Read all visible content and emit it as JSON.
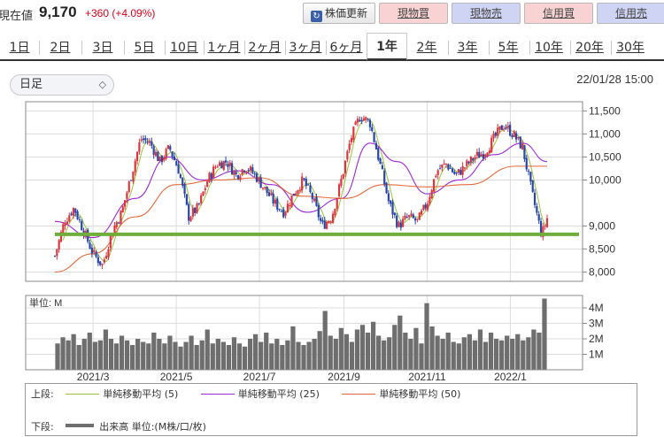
{
  "quote": {
    "label": "現在値",
    "price": "9,170",
    "change": "+360 (+4.09%)"
  },
  "buttons": {
    "refresh": "株価更新",
    "spot_buy": "現物買",
    "spot_sell": "現物売",
    "margin_buy": "信用買",
    "margin_sell": "信用売"
  },
  "tabs": [
    {
      "label": "1日"
    },
    {
      "label": "2日"
    },
    {
      "label": "3日"
    },
    {
      "label": "5日"
    },
    {
      "label": "10日"
    },
    {
      "label": "1ヶ月"
    },
    {
      "label": "2ヶ月"
    },
    {
      "label": "3ヶ月"
    },
    {
      "label": "6ヶ月"
    },
    {
      "label": "1年"
    },
    {
      "label": "2年"
    },
    {
      "label": "3年"
    },
    {
      "label": "5年"
    },
    {
      "label": "10年"
    },
    {
      "label": "20年"
    },
    {
      "label": "30年"
    }
  ],
  "active_tab": "1年",
  "period_select": {
    "value": "日足"
  },
  "timestamp": "22/01/28 15:00",
  "colors": {
    "up": "#d9363e",
    "down": "#2846a8",
    "ma5": "#9ac23c",
    "ma25": "#9c2ad0",
    "ma50": "#e06a3c",
    "support": "#6fae3a",
    "volume": "#6e6e6e"
  },
  "legend": {
    "upper_label": "上段:",
    "ma5": "単純移動平均 (5)",
    "ma25": "単純移動平均 (25)",
    "ma50": "単純移動平均 (50)",
    "lower_label": "下段:",
    "volume": "出来高 単位:(M株/口/枚)"
  },
  "chart_data": [
    {
      "type": "candlestick",
      "title": "",
      "x_tick_labels": [
        "2021/3",
        "2021/5",
        "2021/7",
        "2021/9",
        "2021/11",
        "2022/1"
      ],
      "y_tick_labels": [
        "11,500",
        "11,000",
        "10,500",
        "10,000",
        "9,000",
        "8,500",
        "8,000"
      ],
      "ylim": [
        7800,
        11700
      ],
      "grid": true,
      "support_line": 8820,
      "close_path": [
        [
          "2021-02-01",
          8350
        ],
        [
          "2021-02-08",
          9100
        ],
        [
          "2021-02-15",
          9400
        ],
        [
          "2021-02-22",
          8900
        ],
        [
          "2021-03-01",
          8400
        ],
        [
          "2021-03-08",
          8150
        ],
        [
          "2021-03-15",
          8900
        ],
        [
          "2021-03-22",
          9300
        ],
        [
          "2021-03-29",
          10100
        ],
        [
          "2021-04-05",
          10900
        ],
        [
          "2021-04-12",
          10800
        ],
        [
          "2021-04-19",
          10400
        ],
        [
          "2021-04-26",
          10700
        ],
        [
          "2021-05-03",
          10200
        ],
        [
          "2021-05-10",
          9200
        ],
        [
          "2021-05-17",
          9400
        ],
        [
          "2021-05-24",
          10000
        ],
        [
          "2021-05-31",
          10350
        ],
        [
          "2021-06-07",
          10400
        ],
        [
          "2021-06-14",
          10100
        ],
        [
          "2021-06-21",
          10300
        ],
        [
          "2021-06-28",
          10100
        ],
        [
          "2021-07-05",
          9800
        ],
        [
          "2021-07-12",
          9500
        ],
        [
          "2021-07-19",
          9300
        ],
        [
          "2021-07-26",
          9700
        ],
        [
          "2021-08-02",
          10000
        ],
        [
          "2021-08-09",
          9600
        ],
        [
          "2021-08-16",
          9000
        ],
        [
          "2021-08-23",
          9200
        ],
        [
          "2021-08-30",
          10000
        ],
        [
          "2021-09-06",
          10900
        ],
        [
          "2021-09-13",
          11400
        ],
        [
          "2021-09-20",
          11250
        ],
        [
          "2021-09-27",
          10400
        ],
        [
          "2021-10-04",
          9500
        ],
        [
          "2021-10-11",
          9000
        ],
        [
          "2021-10-18",
          9200
        ],
        [
          "2021-10-25",
          9100
        ],
        [
          "2021-11-01",
          9500
        ],
        [
          "2021-11-08",
          10200
        ],
        [
          "2021-11-15",
          10350
        ],
        [
          "2021-11-22",
          10100
        ],
        [
          "2021-11-29",
          10300
        ],
        [
          "2021-12-06",
          10500
        ],
        [
          "2021-12-13",
          10600
        ],
        [
          "2021-12-20",
          10900
        ],
        [
          "2021-12-27",
          11200
        ],
        [
          "2022-01-03",
          11000
        ],
        [
          "2022-01-10",
          10700
        ],
        [
          "2022-01-17",
          9700
        ],
        [
          "2022-01-24",
          8800
        ],
        [
          "2022-01-28",
          9170
        ]
      ],
      "moving_averages": [
        {
          "name": "単純移動平均 (25)",
          "x": [
            "2021-02-01",
            "2021-03-01",
            "2021-04-01",
            "2021-04-25",
            "2021-05-20",
            "2021-06-15",
            "2021-07-10",
            "2021-08-05",
            "2021-08-30",
            "2021-09-20",
            "2021-10-10",
            "2021-11-01",
            "2021-11-25",
            "2021-12-20",
            "2022-01-10",
            "2022-01-28"
          ],
          "values": [
            9100,
            8750,
            9600,
            10500,
            10000,
            10200,
            9900,
            9300,
            9600,
            10800,
            10400,
            9700,
            10000,
            10550,
            10800,
            10400
          ]
        },
        {
          "name": "単純移動平均 (50)",
          "x": [
            "2021-02-01",
            "2021-03-01",
            "2021-04-01",
            "2021-05-01",
            "2021-06-01",
            "2021-07-01",
            "2021-08-01",
            "2021-09-01",
            "2021-10-01",
            "2021-11-01",
            "2021-12-01",
            "2022-01-05",
            "2022-01-28"
          ],
          "values": [
            8000,
            8400,
            9200,
            9900,
            10000,
            10050,
            9650,
            9600,
            9900,
            9850,
            9900,
            10300,
            10300
          ]
        }
      ]
    },
    {
      "type": "bar",
      "title": "単位: M",
      "y_tick_labels": [
        "4M",
        "3M",
        "2M",
        "1M"
      ],
      "ylim": [
        0,
        4.8
      ],
      "x_tick_labels": [
        "2021/3",
        "2021/5",
        "2021/7",
        "2021/9",
        "2021/11",
        "2022/1"
      ],
      "values": [
        1.7,
        2.1,
        1.9,
        2.3,
        1.6,
        2.0,
        2.4,
        1.8,
        1.9,
        2.6,
        2.0,
        1.7,
        2.2,
        1.9,
        1.6,
        2.0,
        1.8,
        1.7,
        2.4,
        2.0,
        1.7,
        2.2,
        1.8,
        1.5,
        1.8,
        2.2,
        1.6,
        1.9,
        2.6,
        1.7,
        2.0,
        1.8,
        1.6,
        2.1,
        1.7,
        1.5,
        2.0,
        2.3,
        1.8,
        2.4,
        1.7,
        2.0,
        1.6,
        1.9,
        2.8,
        1.8,
        1.6,
        1.8,
        2.0,
        2.5,
        3.8,
        2.2,
        2.0,
        2.7,
        2.3,
        1.8,
        2.6,
        2.9,
        2.4,
        3.1,
        2.2,
        1.9,
        2.1,
        2.9,
        3.5,
        2.4,
        2.0,
        2.7,
        1.7,
        4.3,
        2.8,
        2.2,
        2.0,
        2.4,
        1.8,
        1.7,
        2.1,
        2.3,
        1.9,
        2.6,
        1.8,
        2.4,
        2.0,
        1.9,
        2.2,
        2.0,
        2.3,
        1.9,
        2.1,
        2.6,
        2.4,
        4.6
      ]
    }
  ]
}
